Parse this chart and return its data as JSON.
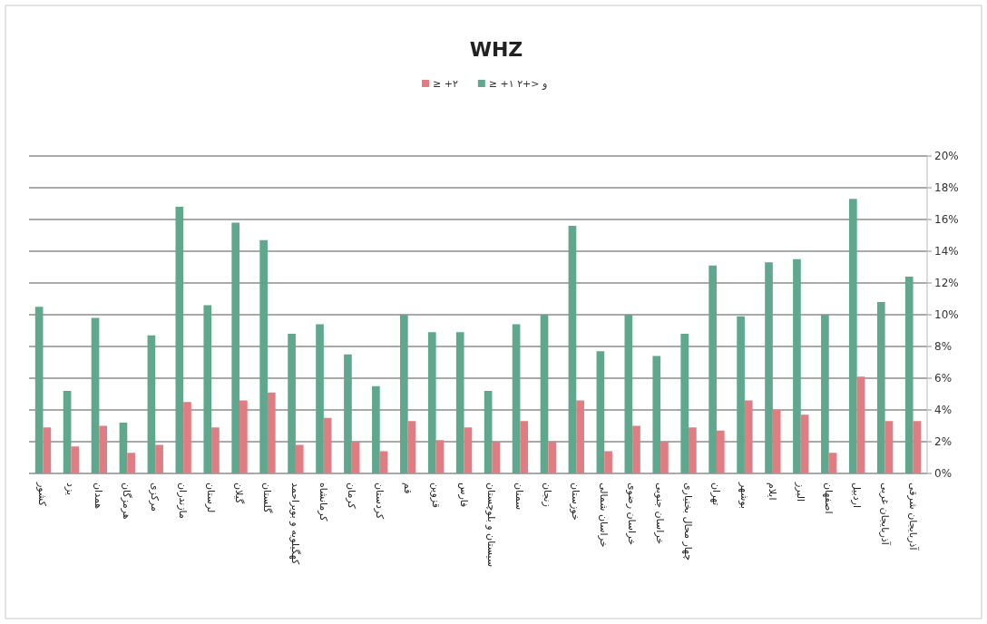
{
  "chart_data": {
    "type": "bar",
    "title": "WHZ",
    "categories": [
      "کشور",
      "یزد",
      "همدان",
      "هرمزگان",
      "مرکزی",
      "مازندران",
      "لرستان",
      "گیلان",
      "گلستان",
      "کهگیلویه و بویراحمد",
      "کرمانشاه",
      "کرمان",
      "کردستان",
      "قم",
      "قزوین",
      "فارس",
      "سیستان و بلوچستان",
      "سمنان",
      "زنجان",
      "خوزستان",
      "خراسان شمالی",
      "خراسان رضوی",
      "خراسان جنوبی",
      "چهار محال بختیاری",
      "تهران",
      "بوشهر",
      "ایلام",
      "البرز",
      "اصفهان",
      "اردبیل",
      "آذربایجان غربی",
      "آذربایجان شرقی"
    ],
    "series": [
      {
        "name": "≥ +۱ و <+۲",
        "color": "#5fa88e",
        "values": [
          10.5,
          5.2,
          9.8,
          3.2,
          8.7,
          16.8,
          10.6,
          15.8,
          14.7,
          8.8,
          9.4,
          7.5,
          5.5,
          10,
          8.9,
          8.9,
          5.2,
          9.4,
          10,
          15.6,
          7.7,
          10,
          7.4,
          8.8,
          13.1,
          9.9,
          13.3,
          13.5,
          10,
          17.3,
          10.8,
          12.4
        ]
      },
      {
        "name": "≥ +۲",
        "color": "#e07c82",
        "values": [
          2.9,
          1.7,
          3.0,
          1.3,
          1.8,
          4.5,
          2.9,
          4.6,
          5.1,
          1.8,
          3.5,
          2.0,
          1.4,
          3.3,
          2.1,
          2.9,
          2.0,
          3.3,
          2.0,
          4.6,
          1.4,
          3.0,
          2.0,
          2.9,
          2.7,
          4.6,
          4.0,
          3.7,
          1.3,
          6.1,
          3.3,
          3.3
        ]
      }
    ],
    "ylim": [
      0,
      20
    ],
    "yticks": [
      {
        "value": 0,
        "label": "0%"
      },
      {
        "value": 2,
        "label": "2%"
      },
      {
        "value": 4,
        "label": "4%"
      },
      {
        "value": 6,
        "label": "6%"
      },
      {
        "value": 8,
        "label": "8%"
      },
      {
        "value": 10,
        "label": "10%"
      },
      {
        "value": 12,
        "label": "12%"
      },
      {
        "value": 14,
        "label": "14%"
      },
      {
        "value": 16,
        "label": "16%"
      },
      {
        "value": 18,
        "label": "18%"
      },
      {
        "value": 20,
        "label": "20%"
      }
    ],
    "grid": "y",
    "legend": "top"
  }
}
